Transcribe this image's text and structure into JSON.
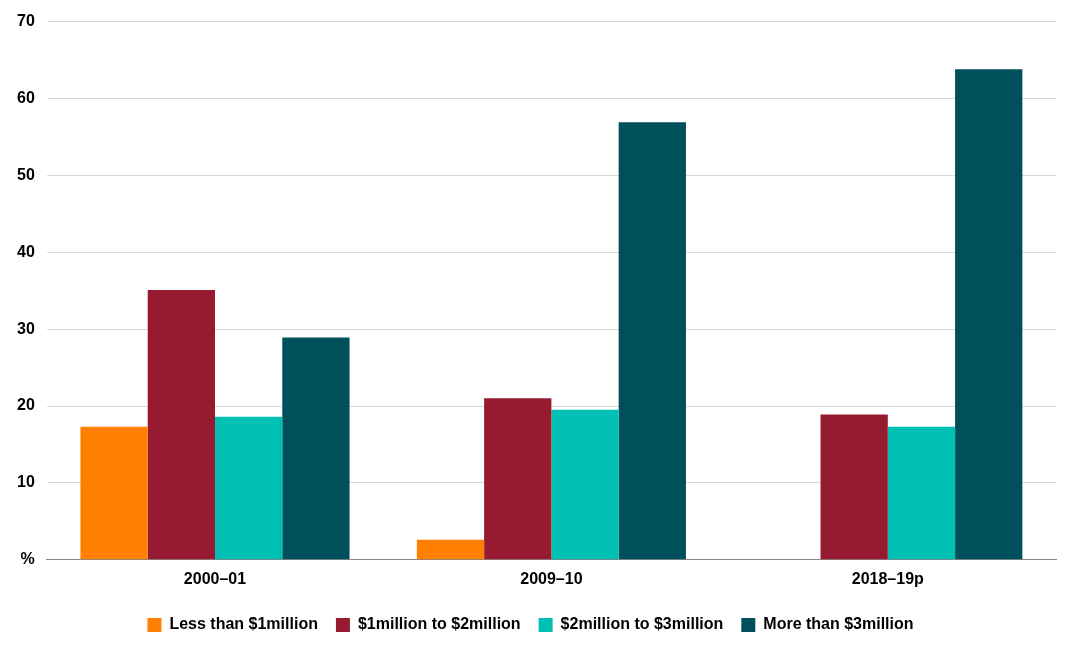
{
  "chart_data": {
    "type": "bar",
    "categories": [
      "2000–01",
      "2009–10",
      "2018–19p"
    ],
    "series": [
      {
        "name": "Less than $1million",
        "color": "#ff7f00",
        "values": [
          17.3,
          2.6,
          0
        ]
      },
      {
        "name": "$1million to $2million",
        "color": "#961b30",
        "values": [
          35.1,
          21.0,
          18.9
        ]
      },
      {
        "name": "$2million to $3million",
        "color": "#00bfb3",
        "values": [
          18.6,
          19.5,
          17.3
        ]
      },
      {
        "name": "More than $3million",
        "color": "#00505c",
        "values": [
          28.9,
          56.9,
          63.8
        ]
      }
    ],
    "ylim": [
      0,
      70
    ],
    "yticks": [
      {
        "value": 0,
        "label": "%"
      },
      10,
      20,
      30,
      40,
      50,
      60,
      70
    ],
    "grid": "y",
    "legend": "bottom"
  }
}
